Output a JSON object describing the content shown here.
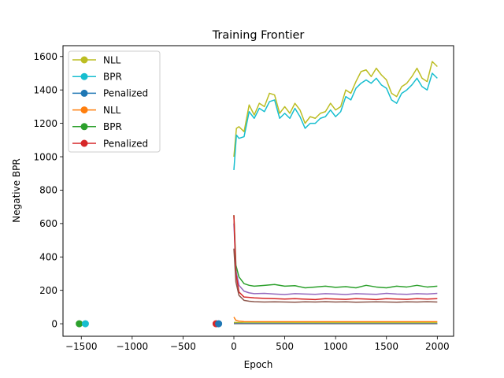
{
  "chart_data": {
    "type": "line",
    "title": "Training Frontier",
    "xlabel": "Epoch",
    "ylabel": "Negative BPR",
    "xlim": [
      -1680,
      2160
    ],
    "ylim": [
      -75,
      1665
    ],
    "xticks": [
      -1500,
      -1000,
      -500,
      0,
      500,
      1000,
      1500,
      2000
    ],
    "xtick_labels": [
      "−1500",
      "−1000",
      "−500",
      "0",
      "500",
      "1000",
      "1500",
      "2000"
    ],
    "yticks": [
      0,
      200,
      400,
      600,
      800,
      1000,
      1200,
      1400,
      1600
    ],
    "grid": false,
    "legend_position": "top-left",
    "legend": [
      {
        "label": "NLL",
        "color": "#bcbd22"
      },
      {
        "label": "BPR",
        "color": "#17becf"
      },
      {
        "label": "Penalized",
        "color": "#1f77b4"
      },
      {
        "label": "NLL",
        "color": "#ff7f0e"
      },
      {
        "label": "BPR",
        "color": "#2ca02c"
      },
      {
        "label": "Penalized",
        "color": "#d62728"
      }
    ],
    "points": [
      {
        "x": -1520,
        "y": 0,
        "color": "#2ca02c"
      },
      {
        "x": -1460,
        "y": 0,
        "color": "#17becf"
      },
      {
        "x": -175,
        "y": 0,
        "color": "#d62728"
      },
      {
        "x": -150,
        "y": 0,
        "color": "#1f77b4"
      }
    ],
    "series": [
      {
        "color": "#bcbd22",
        "x": [
          0,
          25,
          50,
          100,
          150,
          200,
          250,
          300,
          350,
          400,
          450,
          500,
          550,
          600,
          650,
          700,
          750,
          800,
          850,
          900,
          950,
          1000,
          1050,
          1100,
          1150,
          1200,
          1250,
          1300,
          1350,
          1400,
          1450,
          1500,
          1550,
          1600,
          1650,
          1700,
          1750,
          1800,
          1850,
          1900,
          1950,
          2000
        ],
        "y": [
          1000,
          1170,
          1180,
          1150,
          1310,
          1250,
          1320,
          1300,
          1380,
          1370,
          1260,
          1300,
          1260,
          1320,
          1280,
          1200,
          1240,
          1230,
          1260,
          1270,
          1320,
          1280,
          1300,
          1400,
          1380,
          1450,
          1510,
          1520,
          1480,
          1530,
          1490,
          1460,
          1380,
          1360,
          1420,
          1440,
          1480,
          1530,
          1470,
          1450,
          1570,
          1540
        ]
      },
      {
        "color": "#17becf",
        "x": [
          0,
          25,
          50,
          100,
          150,
          200,
          250,
          300,
          350,
          400,
          450,
          500,
          550,
          600,
          650,
          700,
          750,
          800,
          850,
          900,
          950,
          1000,
          1050,
          1100,
          1150,
          1200,
          1250,
          1300,
          1350,
          1400,
          1450,
          1500,
          1550,
          1600,
          1650,
          1700,
          1750,
          1800,
          1850,
          1900,
          1950,
          2000
        ],
        "y": [
          920,
          1130,
          1110,
          1120,
          1270,
          1230,
          1290,
          1270,
          1330,
          1340,
          1230,
          1260,
          1230,
          1290,
          1240,
          1170,
          1200,
          1200,
          1230,
          1240,
          1280,
          1240,
          1270,
          1360,
          1340,
          1410,
          1440,
          1460,
          1440,
          1470,
          1430,
          1410,
          1340,
          1320,
          1380,
          1400,
          1430,
          1470,
          1420,
          1400,
          1500,
          1470
        ]
      },
      {
        "color": "#2ca02c",
        "x": [
          0,
          20,
          50,
          100,
          150,
          200,
          300,
          400,
          500,
          600,
          700,
          800,
          900,
          1000,
          1100,
          1200,
          1300,
          1400,
          1500,
          1600,
          1700,
          1800,
          1900,
          2000
        ],
        "y": [
          650,
          350,
          280,
          240,
          230,
          225,
          230,
          235,
          225,
          228,
          215,
          220,
          225,
          218,
          222,
          215,
          230,
          220,
          215,
          225,
          220,
          230,
          220,
          225
        ]
      },
      {
        "color": "#9467bd",
        "x": [
          0,
          20,
          50,
          100,
          150,
          200,
          300,
          400,
          500,
          600,
          700,
          800,
          900,
          1000,
          1100,
          1200,
          1300,
          1400,
          1500,
          1600,
          1700,
          1800,
          1900,
          2000
        ],
        "y": [
          600,
          320,
          230,
          195,
          185,
          180,
          182,
          178,
          175,
          180,
          178,
          176,
          180,
          178,
          175,
          180,
          178,
          176,
          182,
          178,
          176,
          180,
          178,
          182
        ]
      },
      {
        "color": "#d62728",
        "x": [
          0,
          20,
          50,
          100,
          150,
          200,
          300,
          400,
          500,
          600,
          700,
          800,
          900,
          1000,
          1100,
          1200,
          1300,
          1400,
          1500,
          1600,
          1700,
          1800,
          1900,
          2000
        ],
        "y": [
          650,
          300,
          190,
          160,
          158,
          155,
          152,
          150,
          148,
          150,
          147,
          145,
          150,
          148,
          146,
          150,
          148,
          145,
          150,
          148,
          146,
          150,
          148,
          150
        ]
      },
      {
        "color": "#8c564b",
        "x": [
          0,
          20,
          50,
          100,
          150,
          200,
          300,
          400,
          500,
          600,
          700,
          800,
          900,
          1000,
          1100,
          1200,
          1300,
          1400,
          1500,
          1600,
          1700,
          1800,
          1900,
          2000
        ],
        "y": [
          450,
          250,
          170,
          140,
          135,
          132,
          130,
          131,
          130,
          129,
          131,
          130,
          132,
          130,
          131,
          129,
          130,
          131,
          130,
          129,
          131,
          130,
          132,
          130
        ]
      },
      {
        "color": "#ff7f0e",
        "x": [
          0,
          20,
          50,
          100,
          500,
          1000,
          1500,
          2000
        ],
        "y": [
          40,
          20,
          15,
          13,
          12,
          12,
          12,
          12
        ]
      },
      {
        "color": "#bcbd22",
        "x": [
          0,
          100,
          1000,
          2000
        ],
        "y": [
          8,
          6,
          6,
          6
        ]
      },
      {
        "color": "#1f77b4",
        "x": [
          0,
          1000,
          2000
        ],
        "y": [
          2,
          1,
          1
        ]
      },
      {
        "color": "#7f7f7f",
        "x": [
          0,
          1000,
          2000
        ],
        "y": [
          0,
          0,
          0
        ]
      }
    ]
  }
}
